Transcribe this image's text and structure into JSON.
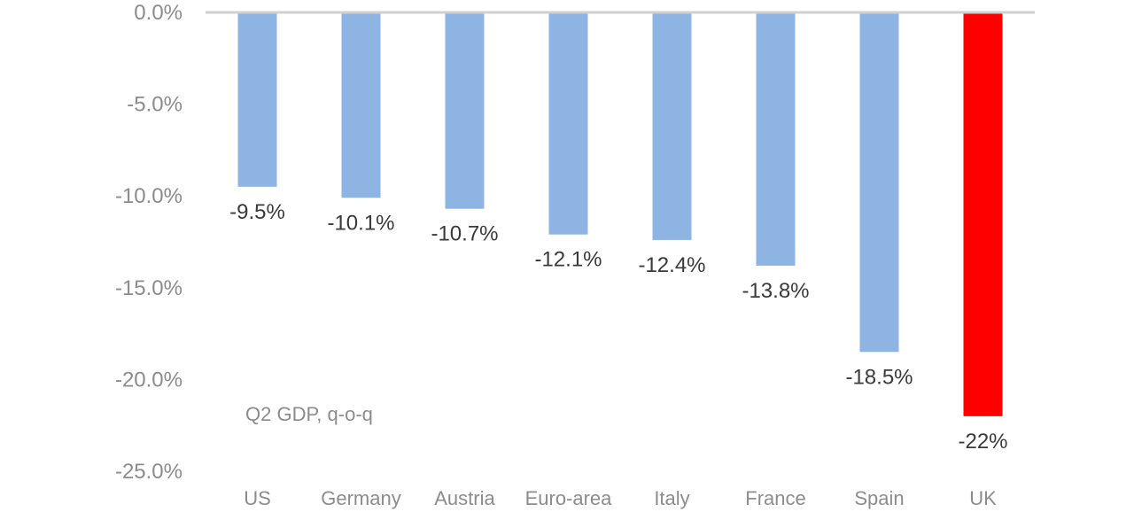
{
  "chart_data": {
    "type": "bar",
    "categories": [
      "US",
      "Germany",
      "Austria",
      "Euro-area",
      "Italy",
      "France",
      "Spain",
      "UK"
    ],
    "values": [
      -9.5,
      -10.1,
      -10.7,
      -12.1,
      -12.4,
      -13.8,
      -18.5,
      -22.0
    ],
    "value_labels": [
      "-9.5%",
      "-10.1%",
      "-10.7%",
      "-12.1%",
      "-12.4%",
      "-13.8%",
      "-18.5%",
      "-22%"
    ],
    "bar_colors": [
      "#8eb4e3",
      "#8eb4e3",
      "#8eb4e3",
      "#8eb4e3",
      "#8eb4e3",
      "#8eb4e3",
      "#8eb4e3",
      "#ff0000"
    ],
    "yticks": [
      0,
      -5,
      -10,
      -15,
      -20,
      -25
    ],
    "ytick_labels": [
      "0.0%",
      "-5.0%",
      "-10.0%",
      "-15.0%",
      "-20.0%",
      "-25.0%"
    ],
    "ylim": [
      -25,
      0
    ],
    "annotation": "Q2 GDP, q-o-q",
    "grid": false,
    "baseline_color": "#d0d0d0"
  }
}
